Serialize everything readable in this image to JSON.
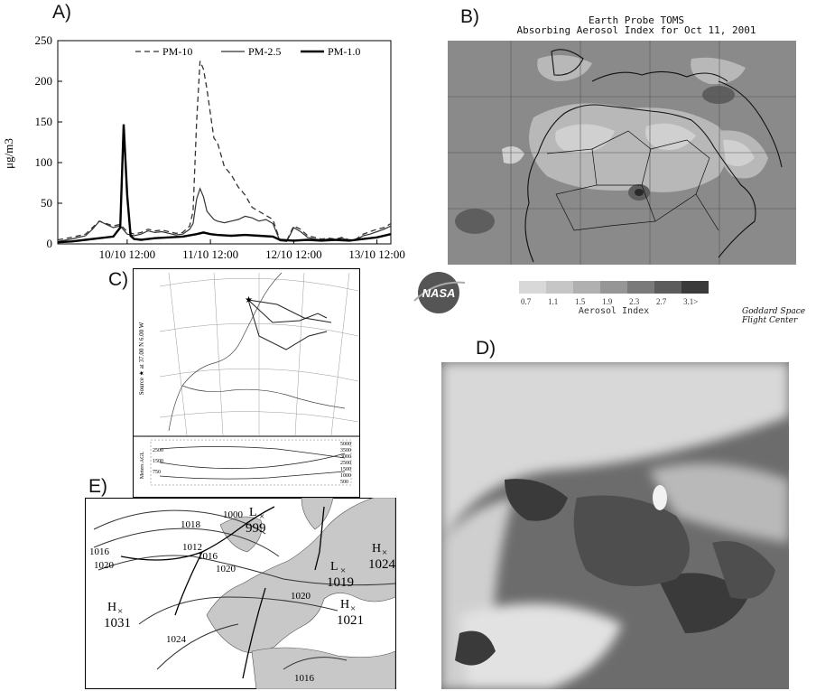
{
  "panel_labels": {
    "a": "A)",
    "b": "B)",
    "c": "C)",
    "d": "D)",
    "e": "E)"
  },
  "chart_data": {
    "type": "line",
    "ylabel": "μg/m3",
    "ylim": [
      0,
      250
    ],
    "y_ticks": [
      "0",
      "50",
      "100",
      "150",
      "200",
      "250"
    ],
    "x_ticks": [
      "10/10 12:00",
      "11/10 12:00",
      "12/10 12:00",
      "13/10 12:00"
    ],
    "xlim": [
      0,
      96
    ],
    "x_tick_hours": [
      20,
      44,
      68,
      92
    ],
    "legend_position": "top",
    "series": [
      {
        "name": "PM-10",
        "style": "dashed",
        "x": [
          0,
          4,
          8,
          10,
          12,
          14,
          16,
          18,
          20,
          22,
          24,
          26,
          28,
          30,
          32,
          34,
          36,
          38,
          39,
          40,
          41,
          42,
          43,
          44,
          45,
          46,
          47,
          48,
          50,
          52,
          54,
          56,
          58,
          60,
          62,
          64,
          66,
          68,
          70,
          72,
          74,
          76,
          78,
          80,
          82,
          84,
          86,
          88,
          90,
          92,
          94,
          96
        ],
        "values": [
          5,
          8,
          12,
          20,
          28,
          25,
          22,
          24,
          15,
          12,
          14,
          18,
          16,
          17,
          15,
          13,
          14,
          22,
          40,
          150,
          225,
          215,
          190,
          160,
          130,
          125,
          110,
          95,
          85,
          70,
          60,
          45,
          40,
          35,
          30,
          5,
          4,
          22,
          18,
          10,
          8,
          6,
          7,
          6,
          8,
          5,
          6,
          12,
          15,
          18,
          20,
          25
        ]
      },
      {
        "name": "PM-2.5",
        "style": "solid-thin",
        "x": [
          0,
          4,
          8,
          10,
          12,
          14,
          16,
          18,
          20,
          22,
          24,
          26,
          28,
          30,
          32,
          34,
          36,
          38,
          39,
          40,
          41,
          42,
          43,
          44,
          45,
          46,
          48,
          50,
          52,
          54,
          56,
          58,
          60,
          62,
          64,
          66,
          68,
          70,
          72,
          74,
          76,
          78,
          80,
          82,
          84,
          86,
          88,
          90,
          92,
          94,
          96
        ],
        "values": [
          3,
          6,
          10,
          18,
          28,
          24,
          20,
          22,
          12,
          10,
          12,
          16,
          14,
          15,
          13,
          11,
          12,
          18,
          25,
          55,
          68,
          58,
          40,
          35,
          30,
          28,
          26,
          28,
          30,
          34,
          32,
          28,
          30,
          25,
          4,
          3,
          20,
          15,
          8,
          6,
          5,
          6,
          5,
          7,
          4,
          5,
          10,
          12,
          15,
          18,
          22
        ]
      },
      {
        "name": "PM-1.0",
        "style": "solid-thick",
        "x": [
          0,
          4,
          8,
          12,
          16,
          18,
          19,
          20,
          21,
          22,
          24,
          28,
          32,
          36,
          40,
          42,
          44,
          46,
          50,
          54,
          58,
          62,
          64,
          68,
          72,
          76,
          80,
          84,
          88,
          92,
          96
        ],
        "values": [
          2,
          3,
          5,
          7,
          9,
          20,
          147,
          60,
          10,
          6,
          5,
          7,
          8,
          9,
          12,
          14,
          12,
          11,
          10,
          11,
          10,
          9,
          5,
          4,
          5,
          4,
          5,
          4,
          6,
          8,
          12
        ]
      }
    ]
  },
  "panel_b": {
    "title_line1": "Earth Probe TOMS",
    "title_line2": "Absorbing Aerosol Index for Oct 11, 2001",
    "colorbar_ticks": [
      "0.7",
      "1.1",
      "1.5",
      "1.9",
      "2.3",
      "2.7",
      "3.1>"
    ],
    "colorbar_label": "Aerosol Index",
    "logo_text": "NASA",
    "credit_line1": "Goddard Space",
    "credit_line2": "Flight Center"
  },
  "panel_c": {
    "source_label": "Source ★ at 37.00 N   6.00 W",
    "height_axis_label": "Meters AGL",
    "height_ticks_left": [
      "2500",
      "1500",
      "750"
    ],
    "height_ticks_right": [
      "5000",
      "3500",
      "3000",
      "2500",
      "1500",
      "1000",
      "500"
    ]
  },
  "panel_e": {
    "pressure_centers": [
      {
        "symbol": "L",
        "value": "999"
      },
      {
        "symbol": "L",
        "value": "1019"
      },
      {
        "symbol": "H",
        "value": "1024"
      },
      {
        "symbol": "H",
        "value": "1031"
      },
      {
        "symbol": "H",
        "value": "1021"
      }
    ],
    "isobar_labels": [
      "1000",
      "1018",
      "1016",
      "1012",
      "1016",
      "1020",
      "1020",
      "1020",
      "1024",
      "1016"
    ]
  }
}
